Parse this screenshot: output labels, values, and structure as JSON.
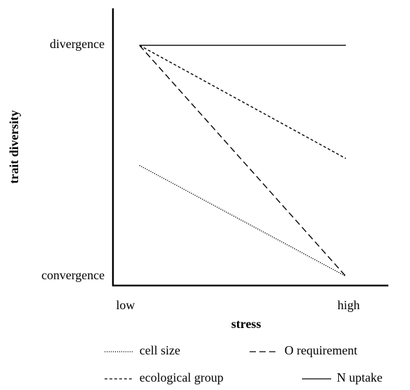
{
  "chart_data": {
    "type": "line",
    "xlabel": "stress",
    "ylabel": "trait diversity",
    "categories": [
      "low",
      "high"
    ],
    "ylim": [
      -0.04,
      1.16
    ],
    "yticks": [
      {
        "value": 1,
        "label": "divergence"
      },
      {
        "value": 0,
        "label": "convergence"
      }
    ],
    "series": [
      {
        "name": "cell size",
        "color": "#000000",
        "linestyle": "dotted",
        "values": [
          0.48,
          0
        ]
      },
      {
        "name": "O requirement",
        "color": "#000000",
        "linestyle": "dashed",
        "values": [
          1,
          0
        ]
      },
      {
        "name": "ecological group",
        "color": "#000000",
        "linestyle": "short-dashed",
        "values": [
          1,
          0.51
        ]
      },
      {
        "name": "N uptake",
        "color": "#000000",
        "linestyle": "solid",
        "values": [
          1,
          1
        ]
      }
    ]
  }
}
